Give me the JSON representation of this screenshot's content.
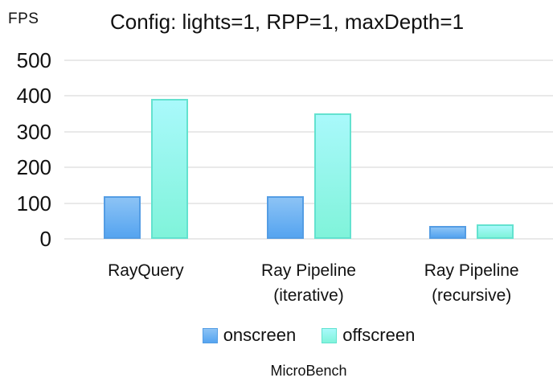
{
  "page": {
    "fps_label": "FPS",
    "title": "Config: lights=1, RPP=1, maxDepth=1",
    "caption": "MicroBench"
  },
  "chart_data": {
    "type": "bar",
    "title": "Config: lights=1, RPP=1, maxDepth=1",
    "ylabel": "FPS",
    "categories": [
      "RayQuery",
      "Ray Pipeline\n(iterative)",
      "Ray Pipeline\n(recursive)"
    ],
    "series": [
      {
        "name": "onscreen",
        "values": [
          120,
          120,
          35
        ],
        "color_top": "#8cc3f5",
        "color_bottom": "#55a4f0",
        "border": "#549de4"
      },
      {
        "name": "offscreen",
        "values": [
          392,
          352,
          41
        ],
        "color_top": "#a9f9fb",
        "color_bottom": "#80f3da",
        "border": "#63e2cf"
      }
    ],
    "ylim": [
      0,
      500
    ],
    "yticks": [
      0,
      100,
      200,
      300,
      400,
      500
    ],
    "grid": true,
    "gridline_color": "#e9e9e9",
    "legend_position": "bottom",
    "source_label": "MicroBench"
  }
}
